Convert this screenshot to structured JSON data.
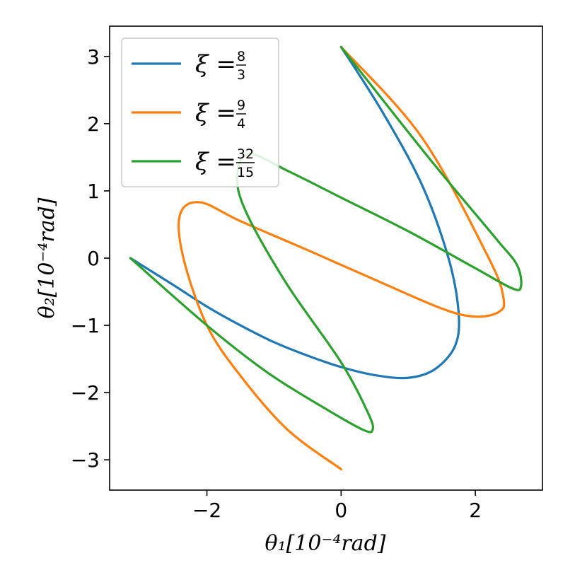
{
  "chart_data": {
    "type": "line",
    "title": "",
    "xlabel": "θ₁[10⁻⁴rad]",
    "ylabel": "θ₂[10⁻⁴rad]",
    "xlim": [
      -3.45,
      3.0
    ],
    "ylim": [
      -3.45,
      3.45
    ],
    "xticks": [
      -2,
      0,
      2
    ],
    "yticks": [
      -3,
      -2,
      -1,
      0,
      1,
      2,
      3
    ],
    "xtick_labels": [
      "−2",
      "0",
      "2"
    ],
    "ytick_labels": [
      "−3",
      "−2",
      "−1",
      "0",
      "1",
      "2",
      "3"
    ],
    "grid": false,
    "legend_position": "top-left",
    "series": [
      {
        "name": "ξ = 8/3",
        "legend_num": "8",
        "legend_den": "3",
        "color": "#1f77b4",
        "x": [
          0.0,
          0.6,
          1.2,
          1.6,
          1.75,
          1.7,
          1.4,
          1.0,
          0.5,
          0.0,
          -0.5,
          -1.0,
          -1.5,
          -2.0,
          -2.5,
          -3.14
        ],
        "y": [
          3.14,
          2.2,
          1.1,
          0.0,
          -0.8,
          -1.3,
          -1.65,
          -1.78,
          -1.74,
          -1.62,
          -1.45,
          -1.25,
          -1.0,
          -0.72,
          -0.4,
          0.0
        ]
      },
      {
        "name": "ξ = 9/4",
        "legend_num": "9",
        "legend_den": "4",
        "color": "#ff7f0e",
        "x": [
          0.0,
          1.2,
          2.2,
          2.42,
          2.35,
          2.0,
          1.5,
          0.5,
          -0.5,
          -1.5,
          -2.1,
          -2.4,
          -2.35,
          -2.0,
          -1.5,
          -0.8,
          0.0
        ],
        "y": [
          3.14,
          1.8,
          0.0,
          -0.6,
          -0.8,
          -0.87,
          -0.75,
          -0.32,
          0.12,
          0.55,
          0.83,
          0.65,
          0.0,
          -1.0,
          -1.75,
          -2.55,
          -3.14
        ]
      },
      {
        "name": "ξ = 32/15",
        "legend_num": "32",
        "legend_den": "15",
        "color": "#2ca02c",
        "x": [
          0.0,
          1.3,
          2.3,
          2.62,
          2.68,
          2.55,
          2.0,
          1.0,
          0.0,
          -0.8,
          -1.38,
          -1.55,
          -1.4,
          -0.8,
          0.0,
          0.4,
          0.47,
          0.32,
          -0.3,
          -1.1,
          -2.0,
          -3.14
        ],
        "y": [
          3.14,
          1.5,
          0.3,
          -0.1,
          -0.42,
          -0.45,
          -0.15,
          0.4,
          0.9,
          1.3,
          1.55,
          1.2,
          0.65,
          -0.4,
          -1.55,
          -2.3,
          -2.55,
          -2.55,
          -2.2,
          -1.7,
          -1.0,
          0.0
        ]
      }
    ]
  }
}
